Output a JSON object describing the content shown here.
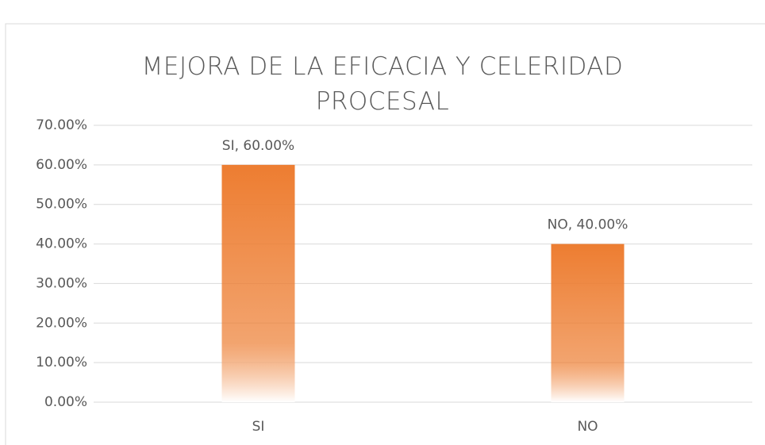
{
  "chart_data": {
    "type": "bar",
    "title": "MEJORA DE LA EFICACIA Y CELERIDAD PROCESAL",
    "categories": [
      "SI",
      "NO"
    ],
    "values": [
      60,
      40
    ],
    "value_labels": [
      "SI, 60.00%",
      "NO, 40.00%"
    ],
    "color": "#ed7d31",
    "ylim": [
      0,
      70
    ],
    "yticks": [
      {
        "value": 0,
        "label": "0.00%"
      },
      {
        "value": 10,
        "label": "10.00%"
      },
      {
        "value": 20,
        "label": "20.00%"
      },
      {
        "value": 30,
        "label": "30.00%"
      },
      {
        "value": 40,
        "label": "40.00%"
      },
      {
        "value": 50,
        "label": "50.00%"
      },
      {
        "value": 60,
        "label": "60.00%"
      },
      {
        "value": 70,
        "label": "70.00%"
      }
    ],
    "grid": true
  }
}
